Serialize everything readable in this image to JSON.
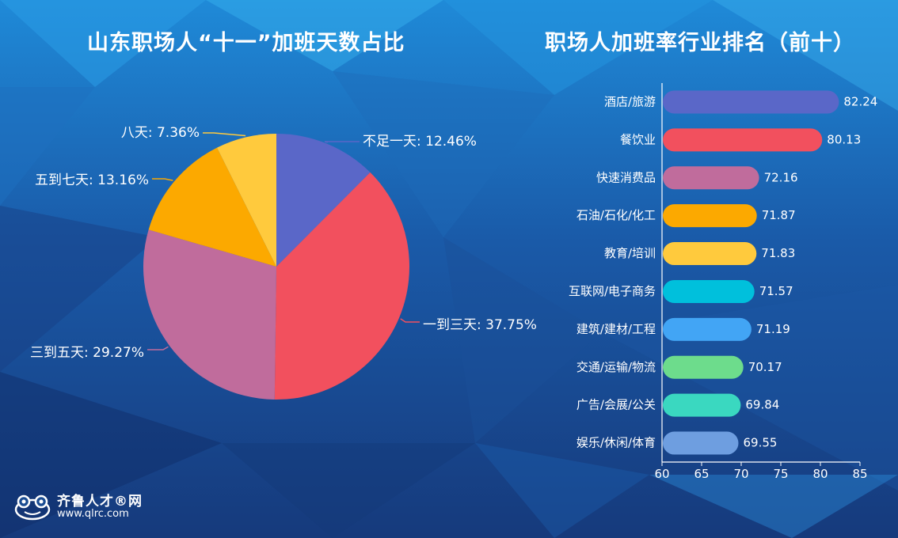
{
  "logo": {
    "name": "齐鲁人才®网",
    "url": "www.qlrc.com"
  },
  "chart_data": [
    {
      "type": "pie",
      "title": "山东职场人“十一”加班天数占比",
      "slices": [
        {
          "label": "不足一天",
          "value": 12.46,
          "display": "不足一天: 12.46%",
          "color": "#5a67c8"
        },
        {
          "label": "一到三天",
          "value": 37.75,
          "display": "一到三天: 37.75%",
          "color": "#f2505e"
        },
        {
          "label": "三到五天",
          "value": 29.27,
          "display": "三到五天: 29.27%",
          "color": "#c06c9c"
        },
        {
          "label": "五到七天",
          "value": 13.16,
          "display": "五到七天: 13.16%",
          "color": "#fca900"
        },
        {
          "label": "八天",
          "value": 7.36,
          "display": "八天: 7.36%",
          "color": "#ffca3d"
        }
      ]
    },
    {
      "type": "bar",
      "orientation": "horizontal",
      "title": "职场人加班率行业排名（前十）",
      "categories": [
        "酒店/旅游",
        "餐饮业",
        "快速消费品",
        "石油/石化/化工",
        "教育/培训",
        "互联网/电子商务",
        "建筑/建材/工程",
        "交通/运输/物流",
        "广告/会展/公关",
        "娱乐/休闲/体育"
      ],
      "values": [
        82.24,
        80.13,
        72.16,
        71.87,
        71.83,
        71.57,
        71.19,
        70.17,
        69.84,
        69.55
      ],
      "value_labels": [
        "82.24",
        "80.13",
        "72.16",
        "71.87",
        "71.83",
        "71.57",
        "71.19",
        "70.17",
        "69.84",
        "69.55"
      ],
      "colors": [
        "#5a67c8",
        "#f2505e",
        "#c06c9c",
        "#fca900",
        "#ffca3d",
        "#00c0dc",
        "#42a5f5",
        "#6ddc8c",
        "#3ad8c0",
        "#6e9ee0"
      ],
      "xlim": [
        60,
        85
      ],
      "xticks": [
        60,
        65,
        70,
        75,
        80,
        85
      ],
      "xtick_labels": [
        "60",
        "65",
        "70",
        "75",
        "80",
        "85"
      ]
    }
  ]
}
